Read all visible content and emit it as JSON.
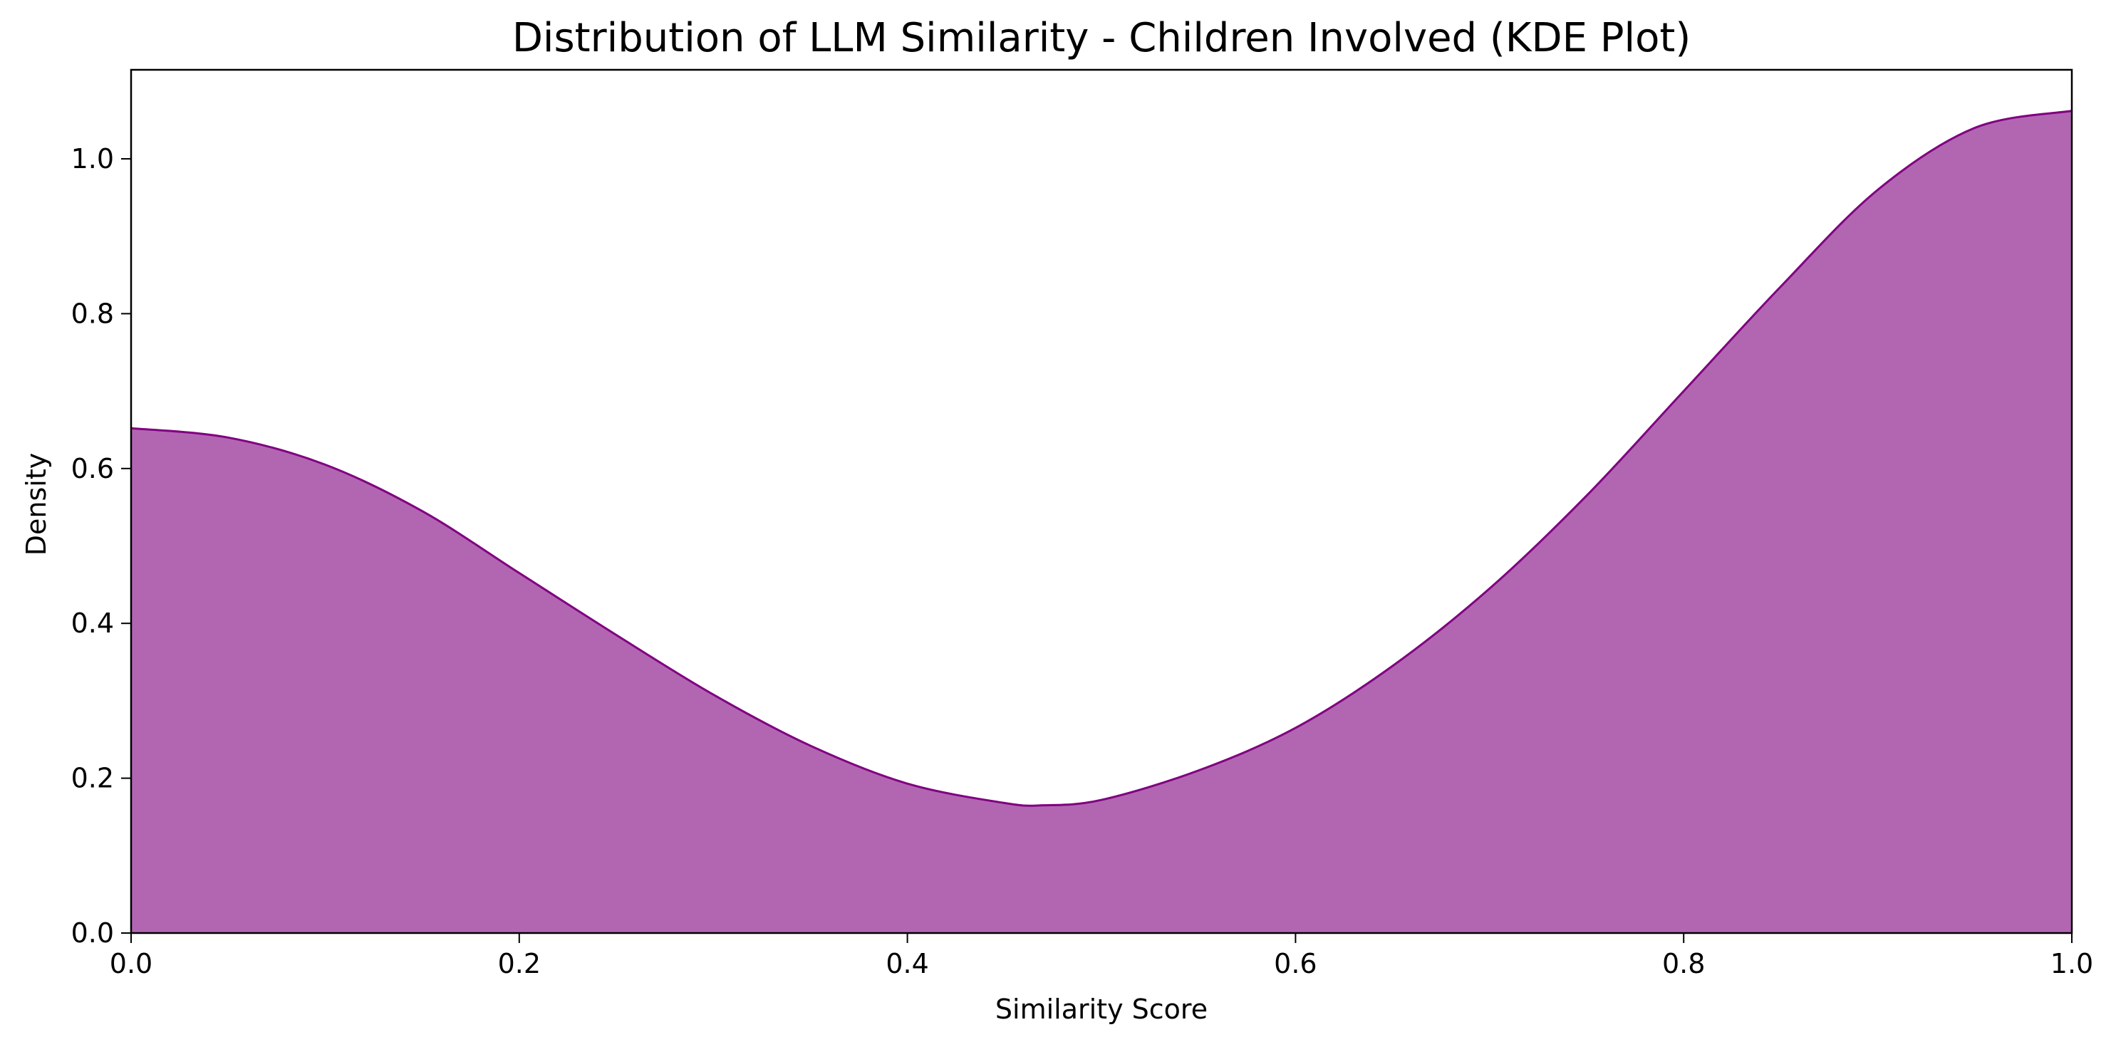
{
  "chart_data": {
    "type": "area",
    "title": "Distribution of LLM Similarity - Children Involved (KDE Plot)",
    "xlabel": "Similarity Score",
    "ylabel": "Density",
    "xlim": [
      0.0,
      1.0
    ],
    "ylim": [
      0.0,
      1.115
    ],
    "x_ticks": [
      "0.0",
      "0.2",
      "0.4",
      "0.6",
      "0.8",
      "1.0"
    ],
    "y_ticks": [
      "0.0",
      "0.2",
      "0.4",
      "0.6",
      "0.8",
      "1.0"
    ],
    "grid": false,
    "fill_color": "#b266b2",
    "line_color": "#800080",
    "series": [
      {
        "x": [
          0.0,
          0.05,
          0.1,
          0.15,
          0.2,
          0.25,
          0.3,
          0.35,
          0.4,
          0.45,
          0.47,
          0.5,
          0.55,
          0.6,
          0.65,
          0.7,
          0.75,
          0.8,
          0.85,
          0.9,
          0.95,
          1.0
        ],
        "y": [
          0.652,
          0.64,
          0.605,
          0.545,
          0.465,
          0.385,
          0.308,
          0.242,
          0.193,
          0.168,
          0.165,
          0.172,
          0.21,
          0.265,
          0.345,
          0.445,
          0.565,
          0.7,
          0.835,
          0.96,
          1.04,
          1.062
        ]
      }
    ]
  }
}
